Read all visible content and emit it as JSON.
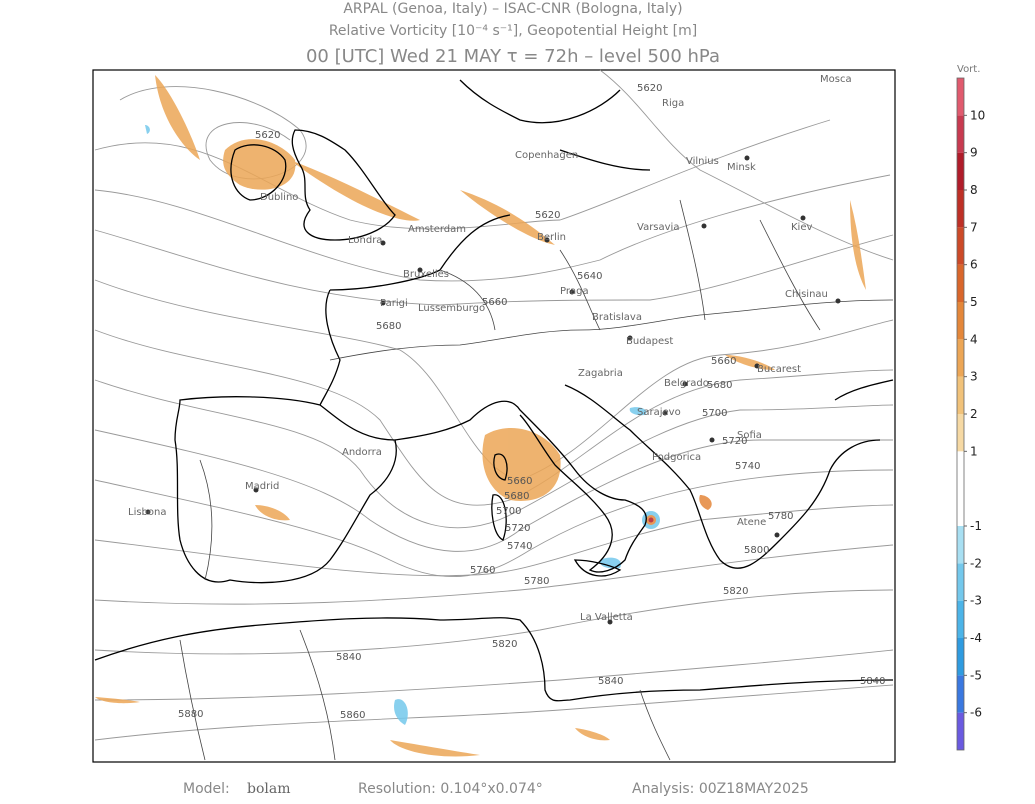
{
  "header": {
    "line1": "ARPAL (Genoa, Italy)  –  ISAC-CNR (Bologna, Italy)",
    "line2": "Relative Vorticity [10⁻⁴ s⁻¹], Geopotential Height [m]",
    "line3": "00 [UTC] Wed 21 MAY   τ = 72h   –   level 500 hPa"
  },
  "cities": [
    "Mosca",
    "Riga",
    "Vilnius",
    "Minsk",
    "Kiev",
    "Copenhagen",
    "Berlin",
    "Varsavia",
    "Amsterdam",
    "Londra",
    "Dublino",
    "Bruxelles",
    "Parigi",
    "Lussemburgo",
    "Praga",
    "Bratislava",
    "Budapest",
    "Chisinau",
    "Bucarest",
    "Belgrado",
    "Sarajevo",
    "Zagabria",
    "Podgorica",
    "Sofia",
    "Madrid",
    "Lisbona",
    "Andorra",
    "La Valletta",
    "Atene"
  ],
  "contour_labels": [
    "5620",
    "5620",
    "5640",
    "5660",
    "5680",
    "5660",
    "5680",
    "5700",
    "5720",
    "5740",
    "5760",
    "5780",
    "5800",
    "5820",
    "5820",
    "5840",
    "5840",
    "5860",
    "5880",
    "5660",
    "5680",
    "5700",
    "5720",
    "5740",
    "5780",
    "5620",
    "5840"
  ],
  "colorbar": {
    "label": "Vort.",
    "range": [
      -7,
      11
    ],
    "ticks": [
      -6,
      -5,
      -4,
      -3,
      -2,
      -1,
      1,
      2,
      3,
      4,
      5,
      6,
      7,
      8,
      9,
      10
    ],
    "colors": [
      "#6a5ae0",
      "#3a78e0",
      "#2f9be0",
      "#4cb4e8",
      "#74c8ec",
      "#a8dff2",
      "#ffffff",
      "#f6d9a4",
      "#f1c27a",
      "#eca656",
      "#e4873a",
      "#d9662b",
      "#cc4a28",
      "#be3026",
      "#b01c2a",
      "#c83a50",
      "#e05a6e"
    ]
  },
  "footer": {
    "model_label": "Model:",
    "model": "bolam",
    "resolution": "Resolution: 0.104°x0.074°",
    "analysis": "Analysis: 00Z18MAY2025"
  }
}
